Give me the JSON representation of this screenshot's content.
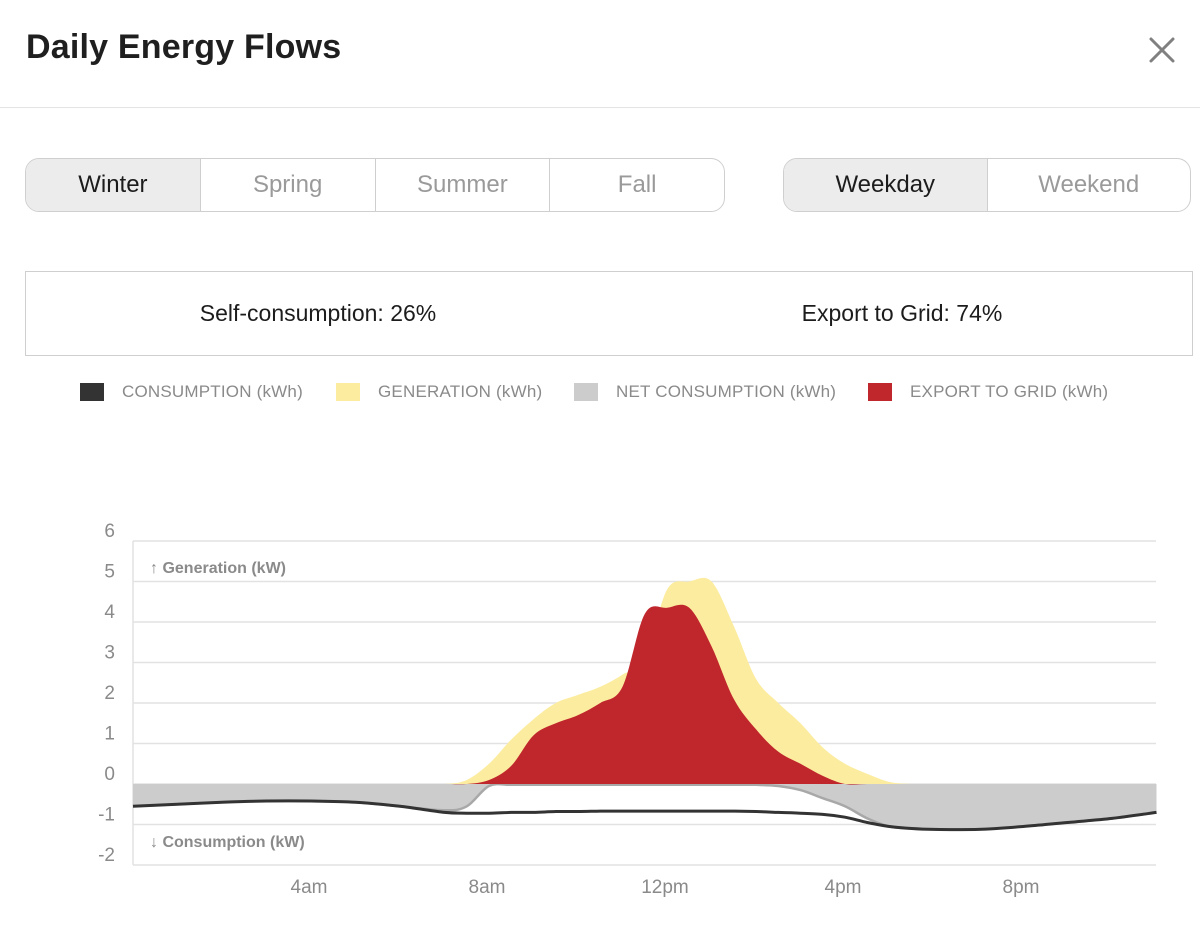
{
  "header": {
    "title": "Daily Energy Flows"
  },
  "icons": {
    "close": "close-icon"
  },
  "seasons": {
    "options": [
      "Winter",
      "Spring",
      "Summer",
      "Fall"
    ],
    "selected": "Winter"
  },
  "daytype": {
    "options": [
      "Weekday",
      "Weekend"
    ],
    "selected": "Weekday"
  },
  "stats": {
    "self_consumption": "Self-consumption: 26%",
    "export_to_grid": "Export to Grid: 74%"
  },
  "legend": [
    {
      "label": "CONSUMPTION (kWh)",
      "color": "#333333"
    },
    {
      "label": "GENERATION (kWh)",
      "color": "#fcec9f"
    },
    {
      "label": "NET CONSUMPTION (kWh)",
      "color": "#cccccc"
    },
    {
      "label": "EXPORT TO GRID (kWh)",
      "color": "#c0272d"
    }
  ],
  "chart_data": {
    "type": "area",
    "x": [
      0,
      1,
      2,
      3,
      4,
      5,
      6,
      7,
      7.5,
      8,
      8.5,
      9,
      9.5,
      10,
      10.5,
      11,
      11.5,
      12,
      12.5,
      13,
      13.5,
      14,
      14.5,
      15,
      15.5,
      16,
      16.5,
      17,
      17.5,
      18,
      19,
      20,
      21,
      22,
      23
    ],
    "y_ticks": [
      6,
      5,
      4,
      3,
      2,
      1,
      0,
      -1,
      -2
    ],
    "ylim": [
      -2,
      6
    ],
    "x_ticks": [
      {
        "hour": 4,
        "label": "4am"
      },
      {
        "hour": 8,
        "label": "8am"
      },
      {
        "hour": 12,
        "label": "12pm"
      },
      {
        "hour": 16,
        "label": "4pm"
      },
      {
        "hour": 20,
        "label": "8pm"
      }
    ],
    "annotations": {
      "up": "↑ Generation (kW)",
      "down": "↓ Consumption (kW)"
    },
    "series": [
      {
        "name": "GENERATION (kWh)",
        "color": "#fcec9f",
        "values": [
          0,
          0,
          0,
          0,
          0,
          0,
          0,
          0,
          0.1,
          0.5,
          1.1,
          1.6,
          2.0,
          2.2,
          2.4,
          2.7,
          3.1,
          4.8,
          5.0,
          5.0,
          3.9,
          2.6,
          2.0,
          1.5,
          0.9,
          0.5,
          0.25,
          0.05,
          0,
          0,
          0,
          0,
          0,
          0,
          0
        ]
      },
      {
        "name": "EXPORT TO GRID (kWh)",
        "color": "#c0272d",
        "values": [
          0,
          0,
          0,
          0,
          0,
          0,
          0,
          0,
          0,
          0.1,
          0.45,
          1.2,
          1.5,
          1.7,
          2.0,
          2.4,
          4.2,
          4.35,
          4.35,
          3.4,
          2.1,
          1.35,
          0.8,
          0.5,
          0.2,
          0,
          0,
          0,
          0,
          0,
          0,
          0,
          0,
          0,
          0
        ]
      },
      {
        "name": "NET CONSUMPTION (kWh)",
        "color": "#cccccc",
        "values": [
          -0.55,
          -0.5,
          -0.45,
          -0.42,
          -0.42,
          -0.45,
          -0.55,
          -0.65,
          -0.55,
          -0.05,
          -0.02,
          -0.02,
          -0.02,
          -0.02,
          -0.02,
          -0.02,
          -0.02,
          -0.02,
          -0.02,
          -0.02,
          -0.02,
          -0.02,
          -0.05,
          -0.15,
          -0.35,
          -0.55,
          -0.85,
          -1.05,
          -1.1,
          -1.12,
          -1.12,
          -1.05,
          -0.95,
          -0.85,
          -0.7
        ]
      },
      {
        "name": "CONSUMPTION (kWh)",
        "color": "#333333",
        "values": [
          -0.55,
          -0.5,
          -0.45,
          -0.42,
          -0.42,
          -0.45,
          -0.55,
          -0.7,
          -0.72,
          -0.72,
          -0.7,
          -0.7,
          -0.68,
          -0.68,
          -0.67,
          -0.67,
          -0.67,
          -0.67,
          -0.67,
          -0.67,
          -0.67,
          -0.68,
          -0.7,
          -0.72,
          -0.75,
          -0.82,
          -0.95,
          -1.05,
          -1.1,
          -1.12,
          -1.12,
          -1.05,
          -0.95,
          -0.85,
          -0.7
        ]
      }
    ]
  }
}
